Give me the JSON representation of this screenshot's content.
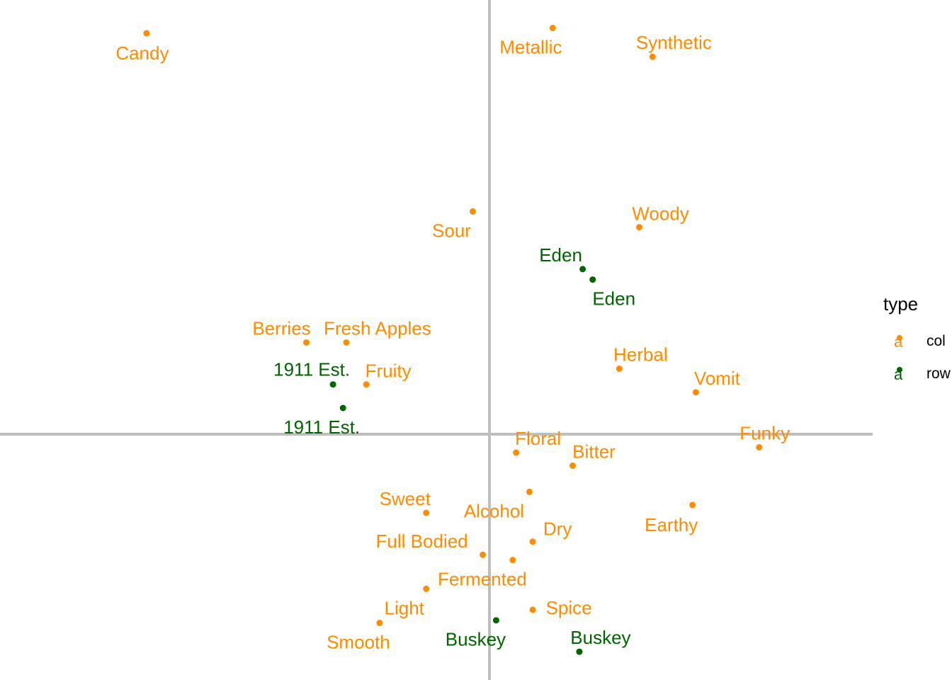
{
  "chart_data": {
    "type": "scatter",
    "title": "",
    "xlabel": "",
    "ylabel": "",
    "xlim": [
      -1.0,
      1.2
    ],
    "ylim": [
      -0.9,
      1.7
    ],
    "grid": false,
    "reference_lines": {
      "x": 0,
      "y": 0
    },
    "legend": {
      "title": "type",
      "placement": "right",
      "key_glyph": "a",
      "entries": [
        {
          "name": "col",
          "color": "#FF8C00"
        },
        {
          "name": "row",
          "color": "#006400"
        }
      ]
    },
    "series": [
      {
        "name": "col",
        "color": "#FF8C00",
        "points": [
          {
            "label": "Candy",
            "x": -1.03,
            "y": 1.53
          },
          {
            "label": "Metallic",
            "x": 0.19,
            "y": 1.55
          },
          {
            "label": "Synthetic",
            "x": 0.49,
            "y": 1.44
          },
          {
            "label": "Sour",
            "x": -0.05,
            "y": 0.85
          },
          {
            "label": "Woody",
            "x": 0.45,
            "y": 0.79
          },
          {
            "label": "Berries",
            "x": -0.55,
            "y": 0.35
          },
          {
            "label": "Fresh Apples",
            "x": -0.43,
            "y": 0.35
          },
          {
            "label": "Fruity",
            "x": -0.37,
            "y": 0.19
          },
          {
            "label": "Herbal",
            "x": 0.39,
            "y": 0.25
          },
          {
            "label": "Vomit",
            "x": 0.62,
            "y": 0.16
          },
          {
            "label": "Funky",
            "x": 0.81,
            "y": -0.05
          },
          {
            "label": "Floral",
            "x": 0.08,
            "y": -0.07
          },
          {
            "label": "Bitter",
            "x": 0.25,
            "y": -0.12
          },
          {
            "label": "Alcohol",
            "x": 0.12,
            "y": -0.22
          },
          {
            "label": "Sweet",
            "x": -0.19,
            "y": -0.3
          },
          {
            "label": "Earthy",
            "x": 0.61,
            "y": -0.27
          },
          {
            "label": "Dry",
            "x": 0.13,
            "y": -0.41
          },
          {
            "label": "Full Bodied",
            "x": -0.02,
            "y": -0.46
          },
          {
            "label": "Fermented",
            "x": 0.07,
            "y": -0.48
          },
          {
            "label": "Light",
            "x": -0.19,
            "y": -0.59
          },
          {
            "label": "Spice",
            "x": 0.13,
            "y": -0.67
          },
          {
            "label": "Smooth",
            "x": -0.33,
            "y": -0.72
          }
        ]
      },
      {
        "name": "row",
        "color": "#006400",
        "points": [
          {
            "label": "Eden",
            "x": 0.28,
            "y": 0.63
          },
          {
            "label": "Eden",
            "x": 0.31,
            "y": 0.59
          },
          {
            "label": "1911 Est.",
            "x": -0.47,
            "y": 0.19
          },
          {
            "label": "1911 Est.",
            "x": -0.44,
            "y": 0.1
          },
          {
            "label": "Buskey",
            "x": 0.02,
            "y": -0.71
          },
          {
            "label": "Buskey",
            "x": 0.27,
            "y": -0.83
          }
        ]
      }
    ]
  }
}
